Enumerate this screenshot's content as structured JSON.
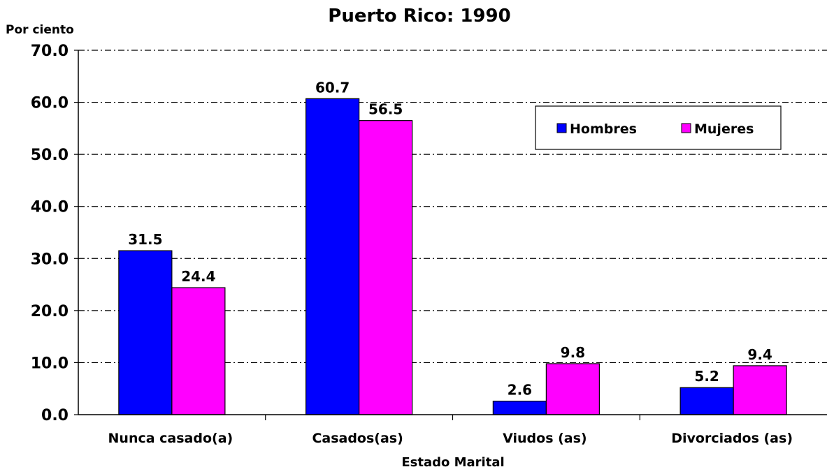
{
  "chart_data": {
    "type": "bar",
    "title": "Puerto Rico: 1990",
    "ylabel": "Por ciento",
    "xlabel": "Estado Marital",
    "categories": [
      "Nunca casado(a)",
      "Casados(as)",
      "Viudos (as)",
      "Divorciados (as)"
    ],
    "series": [
      {
        "name": "Hombres",
        "color": "#0000FF",
        "values": [
          31.5,
          60.7,
          2.6,
          5.2
        ]
      },
      {
        "name": "Mujeres",
        "color": "#FF00FF",
        "values": [
          24.4,
          56.5,
          9.8,
          9.4
        ]
      }
    ],
    "ylim": [
      0,
      70
    ],
    "yticks": [
      "0.0",
      "10.0",
      "20.0",
      "30.0",
      "40.0",
      "50.0",
      "60.0",
      "70.0"
    ],
    "grid": true,
    "grid_style": "dash-dot",
    "legend_position": "top-right",
    "data_labels": true
  }
}
